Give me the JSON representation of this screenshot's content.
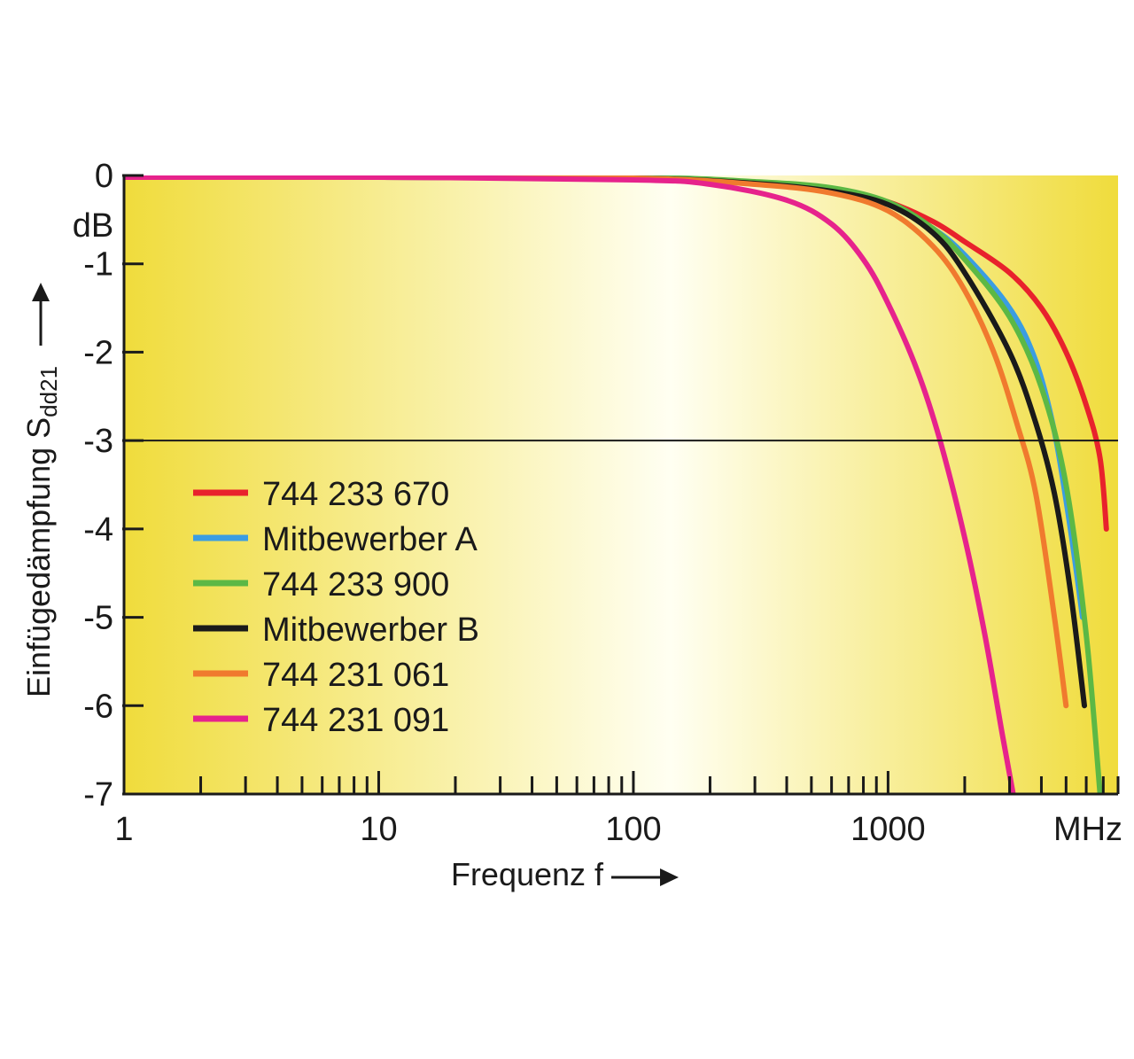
{
  "chart_data": {
    "type": "line",
    "x_scale": "log",
    "xlim": [
      1,
      8000
    ],
    "ylim": [
      -7,
      0
    ],
    "xlabel": "Frequenz f",
    "ylabel_main": "Einfügedämpfung S",
    "ylabel_sub": "dd21",
    "y_unit": "dB",
    "x_unit": "MHz",
    "x_ticks": [
      {
        "value": 1,
        "label": "1"
      },
      {
        "value": 10,
        "label": "10"
      },
      {
        "value": 100,
        "label": "100"
      },
      {
        "value": 1000,
        "label": "1000"
      }
    ],
    "y_ticks": [
      {
        "value": 0,
        "label": "0"
      },
      {
        "value": -1,
        "label": "-1"
      },
      {
        "value": -2,
        "label": "-2"
      },
      {
        "value": -3,
        "label": "-3"
      },
      {
        "value": -4,
        "label": "-4"
      },
      {
        "value": -5,
        "label": "-5"
      },
      {
        "value": -6,
        "label": "-6"
      },
      {
        "value": -7,
        "label": "-7"
      }
    ],
    "reference_line": {
      "y": -3
    },
    "legend_position": "bottom-left",
    "grid": false,
    "background": {
      "edge": "#f0dc3c",
      "center": "#fffff2"
    },
    "series": [
      {
        "name": "744 233 670",
        "color": "#e8222c",
        "x": [
          1,
          10,
          100,
          300,
          600,
          1000,
          1500,
          2000,
          3000,
          4000,
          5000,
          6000,
          6800,
          7200
        ],
        "y": [
          -0.02,
          -0.02,
          -0.03,
          -0.08,
          -0.15,
          -0.3,
          -0.52,
          -0.75,
          -1.1,
          -1.5,
          -2.0,
          -2.6,
          -3.2,
          -4.0
        ]
      },
      {
        "name": "Mitbewerber A",
        "color": "#3b9de2",
        "x": [
          1,
          10,
          100,
          300,
          600,
          1000,
          1500,
          2000,
          3000,
          3800,
          4500,
          5200,
          5800
        ],
        "y": [
          -0.02,
          -0.02,
          -0.03,
          -0.09,
          -0.17,
          -0.32,
          -0.6,
          -0.9,
          -1.5,
          -2.1,
          -2.9,
          -4.0,
          -5.0
        ]
      },
      {
        "name": "744 233 900",
        "color": "#5cb845",
        "x": [
          1,
          10,
          100,
          300,
          600,
          1000,
          1500,
          2000,
          3000,
          4000,
          5000,
          6000,
          6800
        ],
        "y": [
          -0.02,
          -0.02,
          -0.02,
          -0.07,
          -0.14,
          -0.3,
          -0.6,
          -0.95,
          -1.6,
          -2.4,
          -3.5,
          -5.2,
          -7.0
        ]
      },
      {
        "name": "Mitbewerber B",
        "color": "#1a1a1a",
        "x": [
          1,
          10,
          100,
          300,
          600,
          1000,
          1500,
          2000,
          3000,
          3800,
          4500,
          5200,
          5900
        ],
        "y": [
          -0.02,
          -0.02,
          -0.03,
          -0.09,
          -0.18,
          -0.33,
          -0.65,
          -1.1,
          -2.0,
          -2.8,
          -3.6,
          -4.7,
          -6.0
        ]
      },
      {
        "name": "744 231 061",
        "color": "#f07a2e",
        "x": [
          1,
          10,
          100,
          300,
          600,
          1000,
          1500,
          2000,
          2600,
          3200,
          3800,
          4500,
          5000
        ],
        "y": [
          -0.02,
          -0.02,
          -0.03,
          -0.1,
          -0.2,
          -0.4,
          -0.8,
          -1.3,
          -2.0,
          -2.8,
          -3.6,
          -5.0,
          -6.0
        ]
      },
      {
        "name": "744 231 091",
        "color": "#e6238c",
        "x": [
          1,
          10,
          100,
          200,
          400,
          600,
          800,
          1000,
          1300,
          1600,
          2000,
          2400,
          2800,
          3100
        ],
        "y": [
          -0.02,
          -0.02,
          -0.05,
          -0.1,
          -0.28,
          -0.55,
          -0.95,
          -1.45,
          -2.2,
          -3.0,
          -4.1,
          -5.2,
          -6.3,
          -7.0
        ]
      }
    ]
  }
}
